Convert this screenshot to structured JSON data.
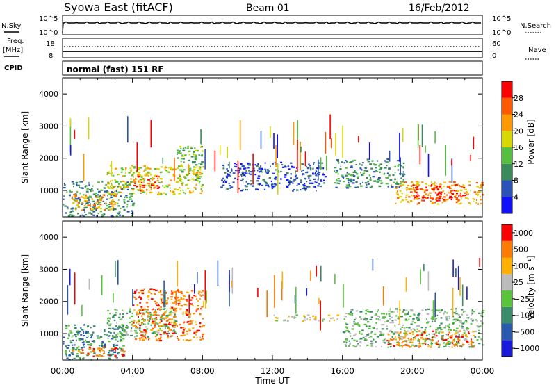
{
  "header": {
    "title_left": "Syowa East (fitACF)",
    "title_center": "Beam 01",
    "title_right": "16/Feb/2012"
  },
  "params": {
    "nsky_label": "N.Sky",
    "nsky_ticks": [
      "10^5",
      "10^0"
    ],
    "nsearch_label": "N.Search",
    "nsearch_ticks": [
      "10^5",
      "10^0"
    ],
    "freq_label_1": "Freq.",
    "freq_label_2": "[MHz]",
    "freq_ticks": [
      "18",
      "8"
    ],
    "nave_label": "Nave",
    "nave_ticks": [
      "60",
      "0"
    ],
    "cpid_label": "CPID",
    "cpid_value": "normal (fast) 151 RF"
  },
  "colors": {
    "power": [
      "#1010ff",
      "#2a52b8",
      "#3a8a5a",
      "#55c040",
      "#d8d800",
      "#ff9900",
      "#ff5a00",
      "#ff0000"
    ],
    "velocity": [
      "#1a1adc",
      "#2a5ab0",
      "#3a8c6a",
      "#58c43a",
      "#bbbbbb",
      "#ffb000",
      "#ff7a00",
      "#ff0000"
    ]
  },
  "chart_data": [
    {
      "type": "heatmap",
      "name": "power",
      "title": "",
      "xlabel": "",
      "ylabel": "Slant Range [km]",
      "xlim_hours": [
        0,
        24
      ],
      "ylim": [
        180,
        4500
      ],
      "x_tick_labels": [
        "00:00",
        "04:00",
        "08:00",
        "12:00",
        "16:00",
        "20:00",
        "00:00"
      ],
      "y_ticks": [
        1000,
        2000,
        3000,
        4000
      ],
      "colorbar": {
        "label": "Power [dB]",
        "ticks": [
          "4",
          "8",
          "12",
          "16",
          "20",
          "24",
          "28"
        ]
      },
      "regions": [
        {
          "t": [
            0.0,
            4.0
          ],
          "r": [
            200,
            1300
          ],
          "level": 2
        },
        {
          "t": [
            0.5,
            3.0
          ],
          "r": [
            400,
            900
          ],
          "level": 5
        },
        {
          "t": [
            2.5,
            8.0
          ],
          "r": [
            900,
            1800
          ],
          "level": 4
        },
        {
          "t": [
            4.0,
            5.5
          ],
          "r": [
            1000,
            1500
          ],
          "level": 6
        },
        {
          "t": [
            6.5,
            8.0
          ],
          "r": [
            1300,
            2400
          ],
          "level": 3
        },
        {
          "t": [
            9.0,
            15.0
          ],
          "r": [
            1000,
            1900
          ],
          "level": 1
        },
        {
          "t": [
            15.5,
            19.5
          ],
          "r": [
            1100,
            2000
          ],
          "level": 2
        },
        {
          "t": [
            19.0,
            24.0
          ],
          "r": [
            600,
            1300
          ],
          "level": 5
        },
        {
          "t": [
            20.0,
            23.0
          ],
          "r": [
            700,
            1200
          ],
          "level": 7
        }
      ]
    },
    {
      "type": "heatmap",
      "name": "velocity",
      "title": "",
      "xlabel": "Time UT",
      "ylabel": "Slant Range [km]",
      "xlim_hours": [
        0,
        24
      ],
      "ylim": [
        180,
        4500
      ],
      "x_tick_labels": [
        "00:00",
        "04:00",
        "08:00",
        "12:00",
        "16:00",
        "20:00",
        "00:00"
      ],
      "y_ticks": [
        1000,
        2000,
        3000,
        4000
      ],
      "colorbar": {
        "label": "Velocity [m s⁻¹]",
        "ticks": [
          "1000",
          "500",
          "100",
          "25",
          "−25",
          "−100",
          "−500",
          "−1000"
        ]
      },
      "regions": [
        {
          "t": [
            0.0,
            3.5
          ],
          "r": [
            200,
            1300
          ],
          "level": 2
        },
        {
          "t": [
            0.5,
            3.5
          ],
          "r": [
            300,
            600
          ],
          "level": 6
        },
        {
          "t": [
            2.5,
            6.5
          ],
          "r": [
            900,
            1800
          ],
          "level": 3
        },
        {
          "t": [
            4.0,
            8.0
          ],
          "r": [
            800,
            2400
          ],
          "level": 6
        },
        {
          "t": [
            12.0,
            16.0
          ],
          "r": [
            1400,
            1600
          ],
          "level": 4
        },
        {
          "t": [
            16.0,
            24.0
          ],
          "r": [
            600,
            1800
          ],
          "level": 3
        },
        {
          "t": [
            18.5,
            23.5
          ],
          "r": [
            600,
            1100
          ],
          "level": 6
        }
      ]
    }
  ]
}
